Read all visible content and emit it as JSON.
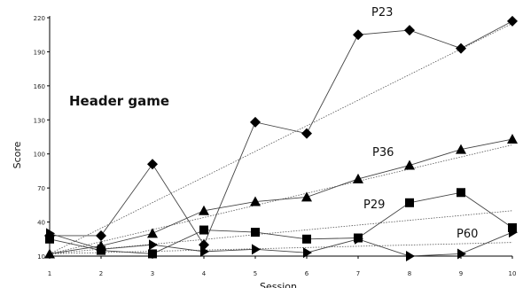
{
  "chart_data": {
    "type": "line",
    "title": "Header game",
    "xlabel": "Session",
    "ylabel": "Score",
    "x": [
      1,
      2,
      3,
      4,
      5,
      6,
      7,
      8,
      9,
      10
    ],
    "xlim": [
      1,
      10
    ],
    "ylim": [
      10,
      220
    ],
    "yticks": [
      10,
      40,
      70,
      100,
      130,
      160,
      190,
      220
    ],
    "grid": false,
    "series": [
      {
        "name": "P23",
        "marker": "diamond",
        "values": [
          28,
          28,
          91,
          20,
          128,
          118,
          205,
          209,
          193,
          217
        ],
        "trend": [
          12,
          215
        ]
      },
      {
        "name": "P36",
        "marker": "triangle-up",
        "values": [
          12,
          19,
          30,
          50,
          58,
          62,
          78,
          90,
          104,
          113
        ],
        "trend": [
          12,
          108
        ]
      },
      {
        "name": "P29",
        "marker": "square",
        "values": [
          25,
          15,
          12,
          33,
          31,
          25,
          26,
          57,
          66,
          35
        ],
        "trend": [
          12,
          50
        ]
      },
      {
        "name": "P60",
        "marker": "triangle-right",
        "values": [
          30,
          16,
          20,
          14,
          16,
          13,
          25,
          10,
          12,
          31
        ],
        "trend": [
          12,
          22
        ]
      }
    ]
  }
}
